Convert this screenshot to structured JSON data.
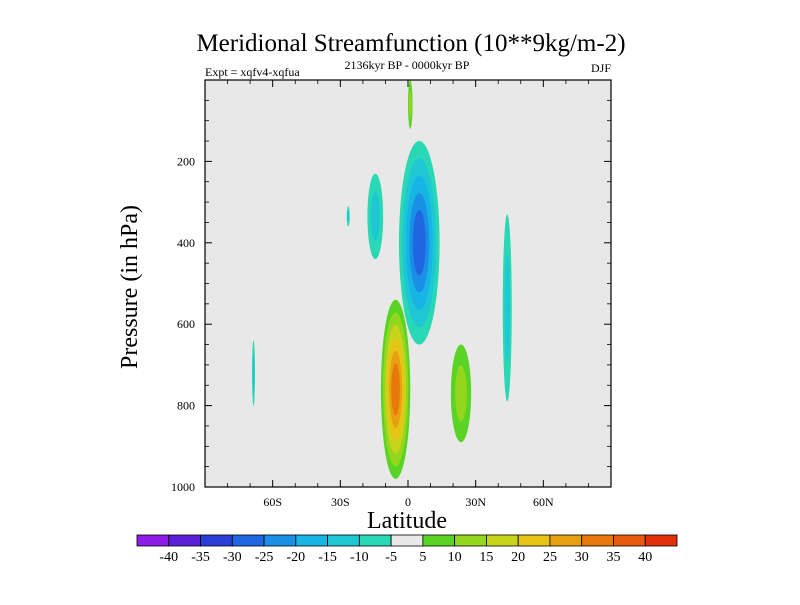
{
  "chart_data": {
    "type": "contour",
    "title": "Meridional Streamfunction (10**9kg/m-2)",
    "subtitle_left": "Expt = xqfv4-xqfua",
    "subtitle_center": "2136kyr BP - 0000kyr BP",
    "subtitle_right": "DJF",
    "xlabel": "Latitude",
    "ylabel": "Pressure (in hPa)",
    "xlim": [
      -90,
      90
    ],
    "ylim": [
      1000,
      0
    ],
    "x_ticks": [
      {
        "value": -60,
        "label": "60S"
      },
      {
        "value": -30,
        "label": "30S"
      },
      {
        "value": 0,
        "label": "0"
      },
      {
        "value": 30,
        "label": "30N"
      },
      {
        "value": 60,
        "label": "60N"
      }
    ],
    "y_ticks": [
      {
        "value": 200,
        "label": "200"
      },
      {
        "value": 400,
        "label": "400"
      },
      {
        "value": 600,
        "label": "600"
      },
      {
        "value": 800,
        "label": "800"
      },
      {
        "value": 1000,
        "label": "1000"
      }
    ],
    "background_color": "#e8e8e8",
    "contour_levels": [
      -40,
      -35,
      -30,
      -25,
      -20,
      -15,
      -10,
      -5,
      5,
      10,
      15,
      20,
      25,
      30,
      35,
      40
    ],
    "colorbar_colors": [
      "#8c1ce6",
      "#5a1fd8",
      "#2a3ed8",
      "#1f66e0",
      "#1a8fe6",
      "#17b4e6",
      "#1dc8d4",
      "#29d8b4",
      "#e8e8e8",
      "#5ad424",
      "#94d61e",
      "#c8d41a",
      "#e6c414",
      "#e6a010",
      "#e6780c",
      "#e65a0c",
      "#e0300c"
    ],
    "features": [
      {
        "name": "equatorial-upper-negative-cell",
        "sign": "negative",
        "lat_range": [
          -4,
          14
        ],
        "pressure_range": [
          150,
          650
        ],
        "min_value": -25
      },
      {
        "name": "tropical-lower-positive-cell",
        "sign": "positive",
        "lat_range": [
          -12,
          1
        ],
        "pressure_range": [
          540,
          980
        ],
        "max_value": 30
      },
      {
        "name": "north-subtropical-positive-cell",
        "sign": "positive",
        "lat_range": [
          19,
          28
        ],
        "pressure_range": [
          650,
          890
        ],
        "max_value": 10
      },
      {
        "name": "south-upper-negative-patch",
        "sign": "negative",
        "lat_range": [
          -18,
          -11
        ],
        "pressure_range": [
          230,
          440
        ],
        "min_value": -10
      },
      {
        "name": "north-midlatitude-negative-band",
        "sign": "negative",
        "lat_range": [
          42,
          46
        ],
        "pressure_range": [
          330,
          790
        ],
        "min_value": -10
      },
      {
        "name": "south-small-negative-patch",
        "sign": "negative",
        "lat_range": [
          -69,
          -68
        ],
        "pressure_range": [
          640,
          800
        ],
        "min_value": -10
      },
      {
        "name": "tiny-negative-patch-30s",
        "sign": "negative",
        "lat_range": [
          -27,
          -26
        ],
        "pressure_range": [
          310,
          360
        ],
        "min_value": -10
      },
      {
        "name": "top-equatorial-positive-sliver",
        "sign": "positive",
        "lat_range": [
          0,
          2
        ],
        "pressure_range": [
          0,
          120
        ],
        "max_value": 10
      }
    ]
  }
}
